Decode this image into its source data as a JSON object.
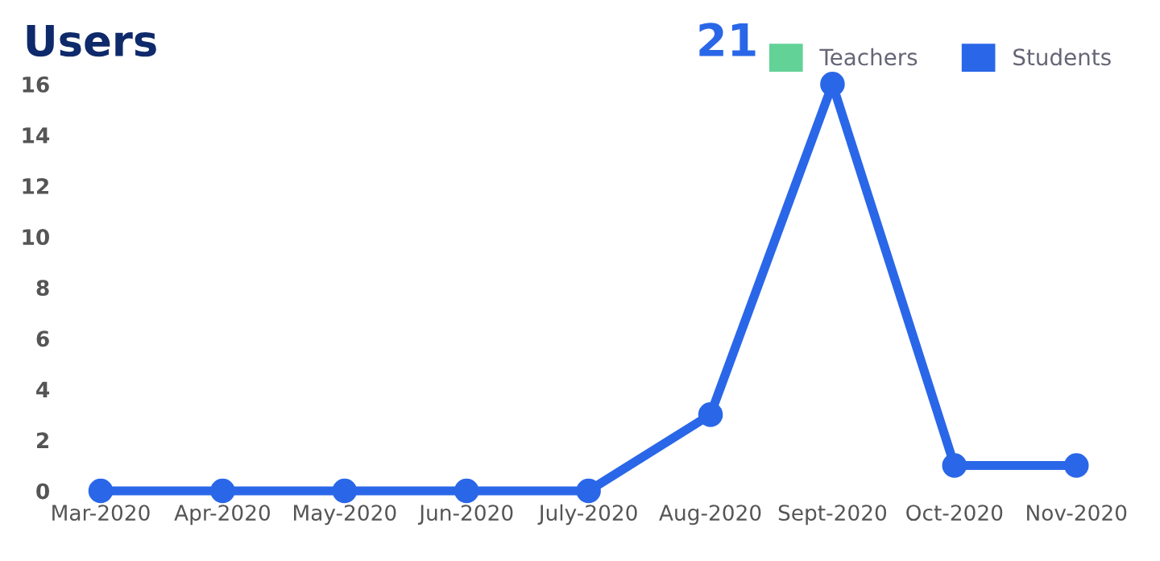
{
  "chart_data": {
    "type": "line",
    "title": "Users",
    "annotations": [
      "21"
    ],
    "categories": [
      "Mar-2020",
      "Apr-2020",
      "May-2020",
      "Jun-2020",
      "July-2020",
      "Aug-2020",
      "Sept-2020",
      "Oct-2020",
      "Nov-2020"
    ],
    "series": [
      {
        "name": "Teachers",
        "color": "#63d297",
        "values": [
          null,
          null,
          null,
          null,
          null,
          null,
          null,
          null,
          null
        ]
      },
      {
        "name": "Students",
        "color": "#2a67e8",
        "values": [
          0,
          0,
          0,
          0,
          0,
          3,
          16,
          1,
          1
        ]
      }
    ],
    "ylim": [
      0,
      16
    ],
    "yticks": [
      0,
      2,
      4,
      6,
      8,
      10,
      12,
      14,
      16
    ],
    "grid": false,
    "legend": "top right",
    "marker": "circle"
  }
}
